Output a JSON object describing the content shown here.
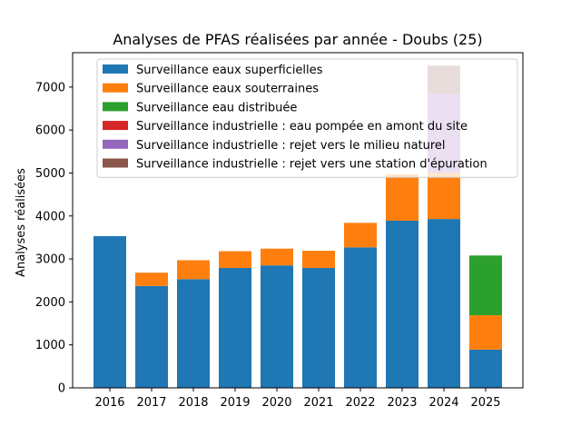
{
  "chart_data": {
    "type": "bar",
    "stacked": true,
    "title": "Analyses de PFAS réalisées par année - Doubs (25)",
    "xlabel": "",
    "ylabel": "Analyses réalisées",
    "ylim": [
      0,
      7800
    ],
    "yticks": [
      0,
      1000,
      2000,
      3000,
      4000,
      5000,
      6000,
      7000
    ],
    "categories": [
      "2016",
      "2017",
      "2018",
      "2019",
      "2020",
      "2021",
      "2022",
      "2023",
      "2024",
      "2025"
    ],
    "legend_position": "top-left",
    "series": [
      {
        "name": "Surveillance eaux superficielles",
        "color": "#1f77b4",
        "values": [
          3530,
          2370,
          2530,
          2790,
          2850,
          2790,
          3270,
          3890,
          3930,
          890
        ]
      },
      {
        "name": "Surveillance eaux souterraines",
        "color": "#ff7f0e",
        "values": [
          0,
          310,
          440,
          390,
          390,
          400,
          570,
          1080,
          1080,
          800
        ]
      },
      {
        "name": "Surveillance eau distribuée",
        "color": "#2ca02c",
        "values": [
          0,
          0,
          0,
          0,
          0,
          0,
          0,
          0,
          0,
          1390
        ]
      },
      {
        "name": "Surveillance industrielle : eau pompée en amont du site",
        "color": "#d62728",
        "values": [
          0,
          0,
          0,
          0,
          0,
          0,
          0,
          0,
          0,
          0
        ]
      },
      {
        "name": "Surveillance industrielle : rejet vers le milieu naturel",
        "color": "#9467bd",
        "values": [
          0,
          0,
          0,
          0,
          0,
          0,
          0,
          0,
          1840,
          0
        ]
      },
      {
        "name": "Surveillance industrielle : rejet vers une station d'épuration",
        "color": "#8c564b",
        "values": [
          0,
          0,
          0,
          0,
          0,
          0,
          0,
          0,
          650,
          0
        ]
      }
    ]
  }
}
